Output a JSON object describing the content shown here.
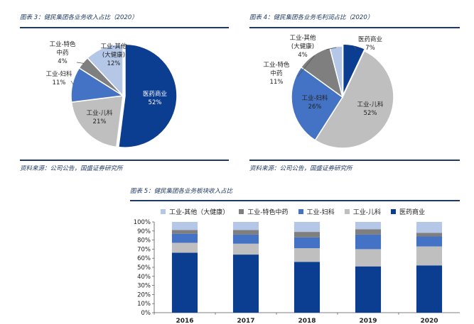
{
  "fig3": {
    "title": "图表 3：健民集团各业务收入占比（2020）",
    "source": "资料来源：公司公告，国盛证券研究所"
  },
  "fig4": {
    "title": "图表 4：健民集团各业务毛利润占比（2020）",
    "source": "资料来源：公司公告，国盛证券研究所"
  },
  "fig5": {
    "title": "图表 5：健民集团各业务板块收入占比"
  },
  "colors": {
    "yiyao": "#0b3d91",
    "erke": "#bfbfbf",
    "fuke": "#4472c4",
    "tese": "#7f7f7f",
    "qita": "#b4c7e7"
  },
  "chart_data": [
    {
      "type": "pie",
      "slices": [
        {
          "label": "医药商业",
          "value": 52,
          "display": "52%",
          "color_key": "yiyao"
        },
        {
          "label": "工业-儿科",
          "value": 21,
          "display": "21%",
          "color_key": "erke"
        },
        {
          "label": "工业-妇科",
          "value": 11,
          "display": "11%",
          "color_key": "fuke"
        },
        {
          "label": "工业-特色中药",
          "value": 4,
          "display": "4%",
          "color_key": "tese"
        },
        {
          "label": "工业-其他（大健康）",
          "value": 12,
          "display": "12%",
          "color_key": "qita"
        }
      ]
    },
    {
      "type": "pie",
      "slices": [
        {
          "label": "医药商业",
          "value": 7,
          "display": "7%",
          "color_key": "yiyao"
        },
        {
          "label": "工业-儿科",
          "value": 52,
          "display": "52%",
          "color_key": "erke"
        },
        {
          "label": "工业-妇科",
          "value": 26,
          "display": "26%",
          "color_key": "fuke"
        },
        {
          "label": "工业-特色中药",
          "value": 11,
          "display": "11%",
          "color_key": "tese"
        },
        {
          "label": "工业-其他（大健康）",
          "value": 4,
          "display": "4%",
          "color_key": "qita"
        }
      ]
    },
    {
      "type": "bar",
      "stacked": true,
      "categories": [
        "2016",
        "2017",
        "2018",
        "2019",
        "2020"
      ],
      "yticks": [
        "0%",
        "10%",
        "20%",
        "30%",
        "40%",
        "50%",
        "60%",
        "70%",
        "80%",
        "90%",
        "100%"
      ],
      "ylim": [
        0,
        100
      ],
      "legend_position": "top",
      "legend": [
        "工业-其他（大健康）",
        "工业-特色中药",
        "工业-妇科",
        "工业-儿科",
        "医药商业"
      ],
      "series": [
        {
          "name": "医药商业",
          "color_key": "yiyao",
          "values": [
            66,
            64,
            56,
            51,
            52
          ]
        },
        {
          "name": "工业-儿科",
          "color_key": "erke",
          "values": [
            11,
            12,
            15,
            19,
            21
          ]
        },
        {
          "name": "工业-妇科",
          "color_key": "fuke",
          "values": [
            10,
            10,
            12,
            16,
            11
          ]
        },
        {
          "name": "工业-特色中药",
          "color_key": "tese",
          "values": [
            4,
            5,
            6,
            6,
            4
          ]
        },
        {
          "name": "工业-其他（大健康）",
          "color_key": "qita",
          "values": [
            9,
            9,
            11,
            8,
            12
          ]
        }
      ]
    }
  ]
}
